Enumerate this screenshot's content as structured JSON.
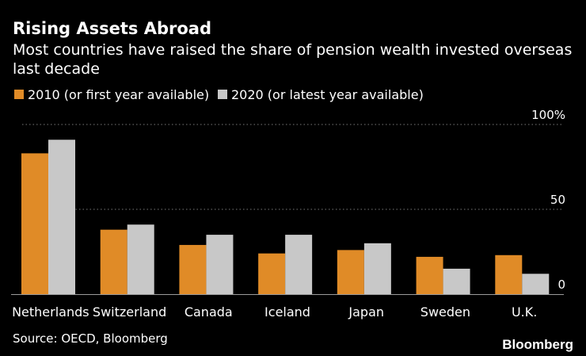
{
  "chart_data": {
    "type": "bar",
    "title": "Rising Assets Abroad",
    "subtitle_lines": [
      "Most countries have raised the share of pension wealth invested overseas",
      "last decade"
    ],
    "categories": [
      "Netherlands",
      "Switzerland",
      "Canada",
      "Iceland",
      "Japan",
      "Sweden",
      "U.K."
    ],
    "series": [
      {
        "name": "2010 (or first year available)",
        "color": "#e08b27",
        "values": [
          83,
          38,
          29,
          24,
          26,
          22,
          23
        ]
      },
      {
        "name": "2020 (or latest year available)",
        "color": "#c8c8c8",
        "values": [
          91,
          41,
          35,
          35,
          30,
          15,
          12
        ]
      }
    ],
    "ylim": [
      0,
      100
    ],
    "yticks": [
      {
        "value": 0,
        "label": "0"
      },
      {
        "value": 50,
        "label": "50"
      },
      {
        "value": 100,
        "label": "100%"
      }
    ],
    "xlabel": "",
    "ylabel": "",
    "grid": true,
    "legend_position": "top-left",
    "source": "Source: OECD, Bloomberg",
    "brand": "Bloomberg",
    "colors": {
      "background": "#000000",
      "text": "#ffffff",
      "grid": "#777777",
      "axis": "#9a9a9a"
    }
  }
}
